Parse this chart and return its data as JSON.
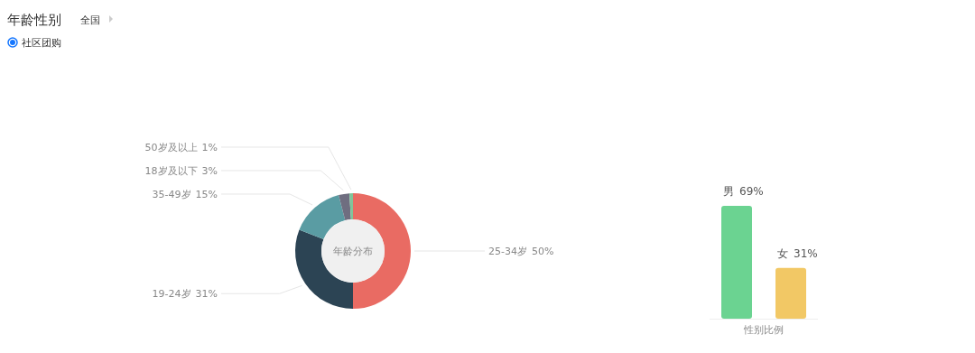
{
  "chart_data": [
    {
      "type": "other",
      "title": "年龄性别",
      "annotations": [
        "全国",
        "社区团购"
      ]
    },
    {
      "type": "donut",
      "title": "年龄分布",
      "categories": [
        "25-34岁",
        "19-24岁",
        "35-49岁",
        "18岁及以下",
        "50岁及以上"
      ],
      "values": [
        50,
        31,
        15,
        3,
        1
      ],
      "value_labels": [
        "50%",
        "31%",
        "15%",
        "3%",
        "1%"
      ],
      "colors": [
        "#e96b63",
        "#2c4454",
        "#5a9ca3",
        "#6f6e80",
        "#7fc59a"
      ]
    },
    {
      "type": "bar",
      "xlabel": "性别比例",
      "categories": [
        "男",
        "女"
      ],
      "values": [
        69,
        31
      ],
      "value_labels": [
        "69%",
        "31%"
      ],
      "colors": [
        "#6bd391",
        "#f2c865"
      ]
    }
  ]
}
